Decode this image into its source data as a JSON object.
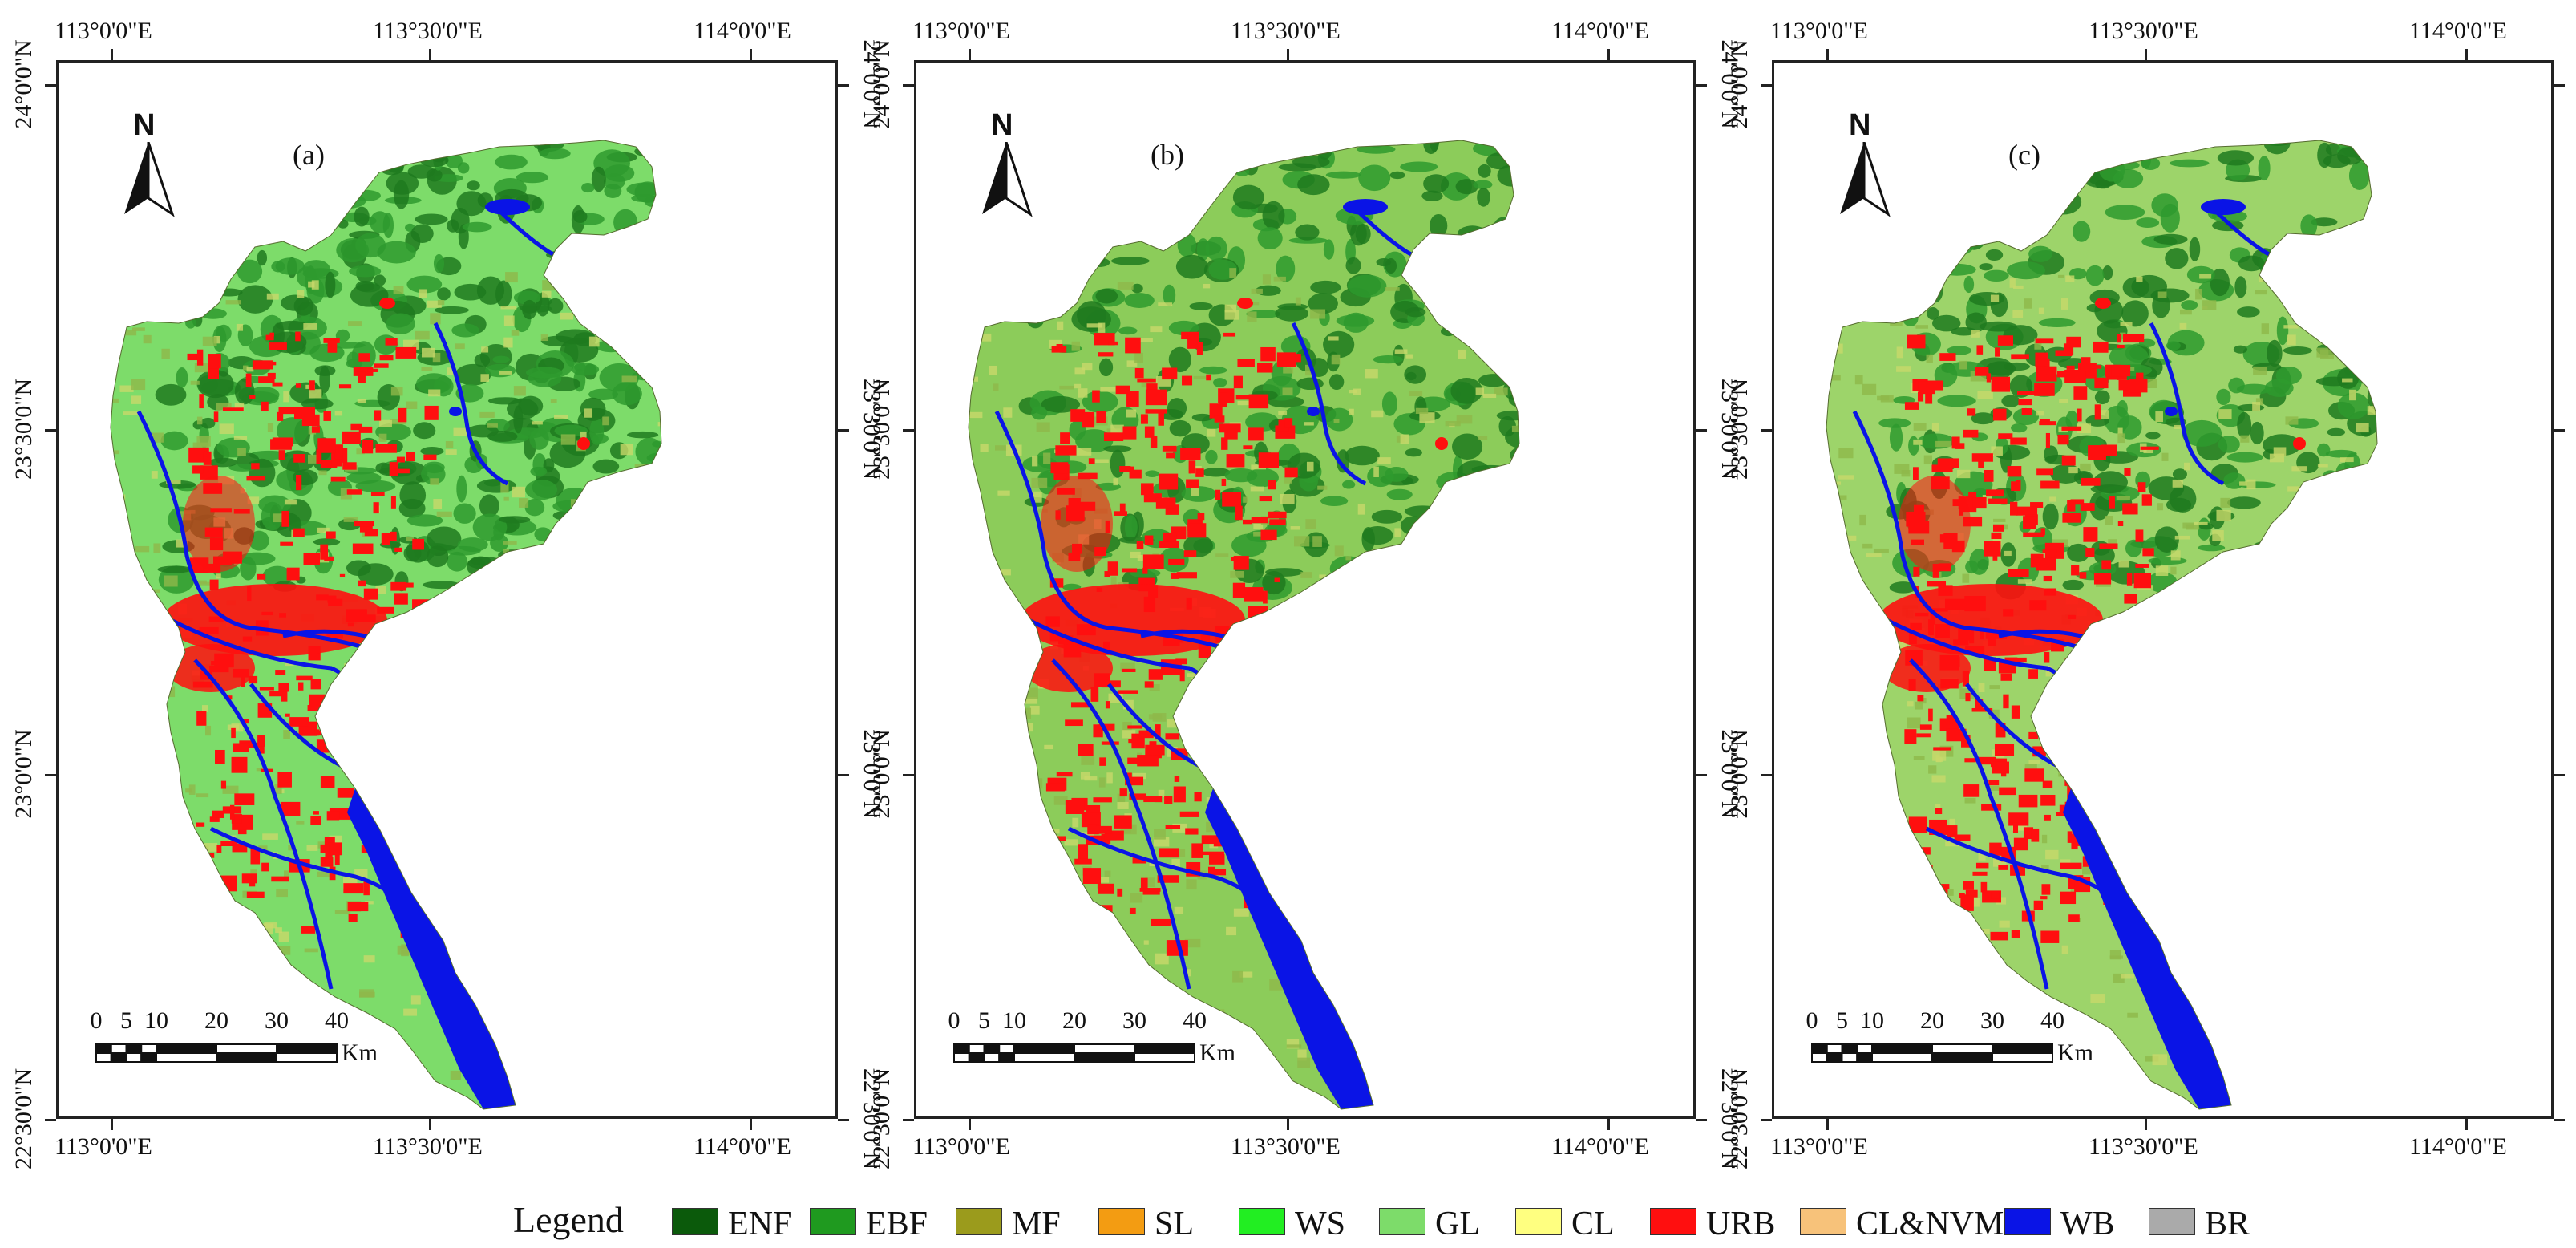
{
  "legend": {
    "title": "Legend",
    "items": [
      {
        "code": "ENF",
        "color": "#0b5a0b"
      },
      {
        "code": "EBF",
        "color": "#1f9a1f"
      },
      {
        "code": "MF",
        "color": "#9b9b1c"
      },
      {
        "code": "SL",
        "color": "#f39c12"
      },
      {
        "code": "WS",
        "color": "#22ee22"
      },
      {
        "code": "GL",
        "color": "#7ddc6a"
      },
      {
        "code": "CL",
        "color": "#ffff80"
      },
      {
        "code": "URB",
        "color": "#ff0f0f"
      },
      {
        "code": "CL&NVM",
        "color": "#f7c27a"
      },
      {
        "code": "WB",
        "color": "#0a14e6"
      },
      {
        "code": "BR",
        "color": "#aaaaaa"
      }
    ]
  },
  "axis_labels": {
    "lon": [
      "113°0'0\"E",
      "113°30'0\"E",
      "114°0'0\"E"
    ],
    "lat": [
      "24°0'0\"N",
      "23°30'0\"N",
      "23°0'0\"N",
      "22°30'0\"N"
    ]
  },
  "scale_bar": {
    "ticks": [
      "0",
      "5",
      "10",
      "20",
      "30",
      "40"
    ],
    "unit": "Km"
  },
  "north_arrow": {
    "label": "N"
  },
  "panels": [
    {
      "letter": "(a)"
    },
    {
      "letter": "(b)"
    },
    {
      "letter": "(c)"
    }
  ],
  "colors": {
    "water": "#0a14e6",
    "urban": "#ff0f0f",
    "forest_dark": "#1f7a1f",
    "forest": "#2e9a2e",
    "grass": "#7ddc6a",
    "mixed": "#8fb84a",
    "farm": "#c8d86a"
  }
}
